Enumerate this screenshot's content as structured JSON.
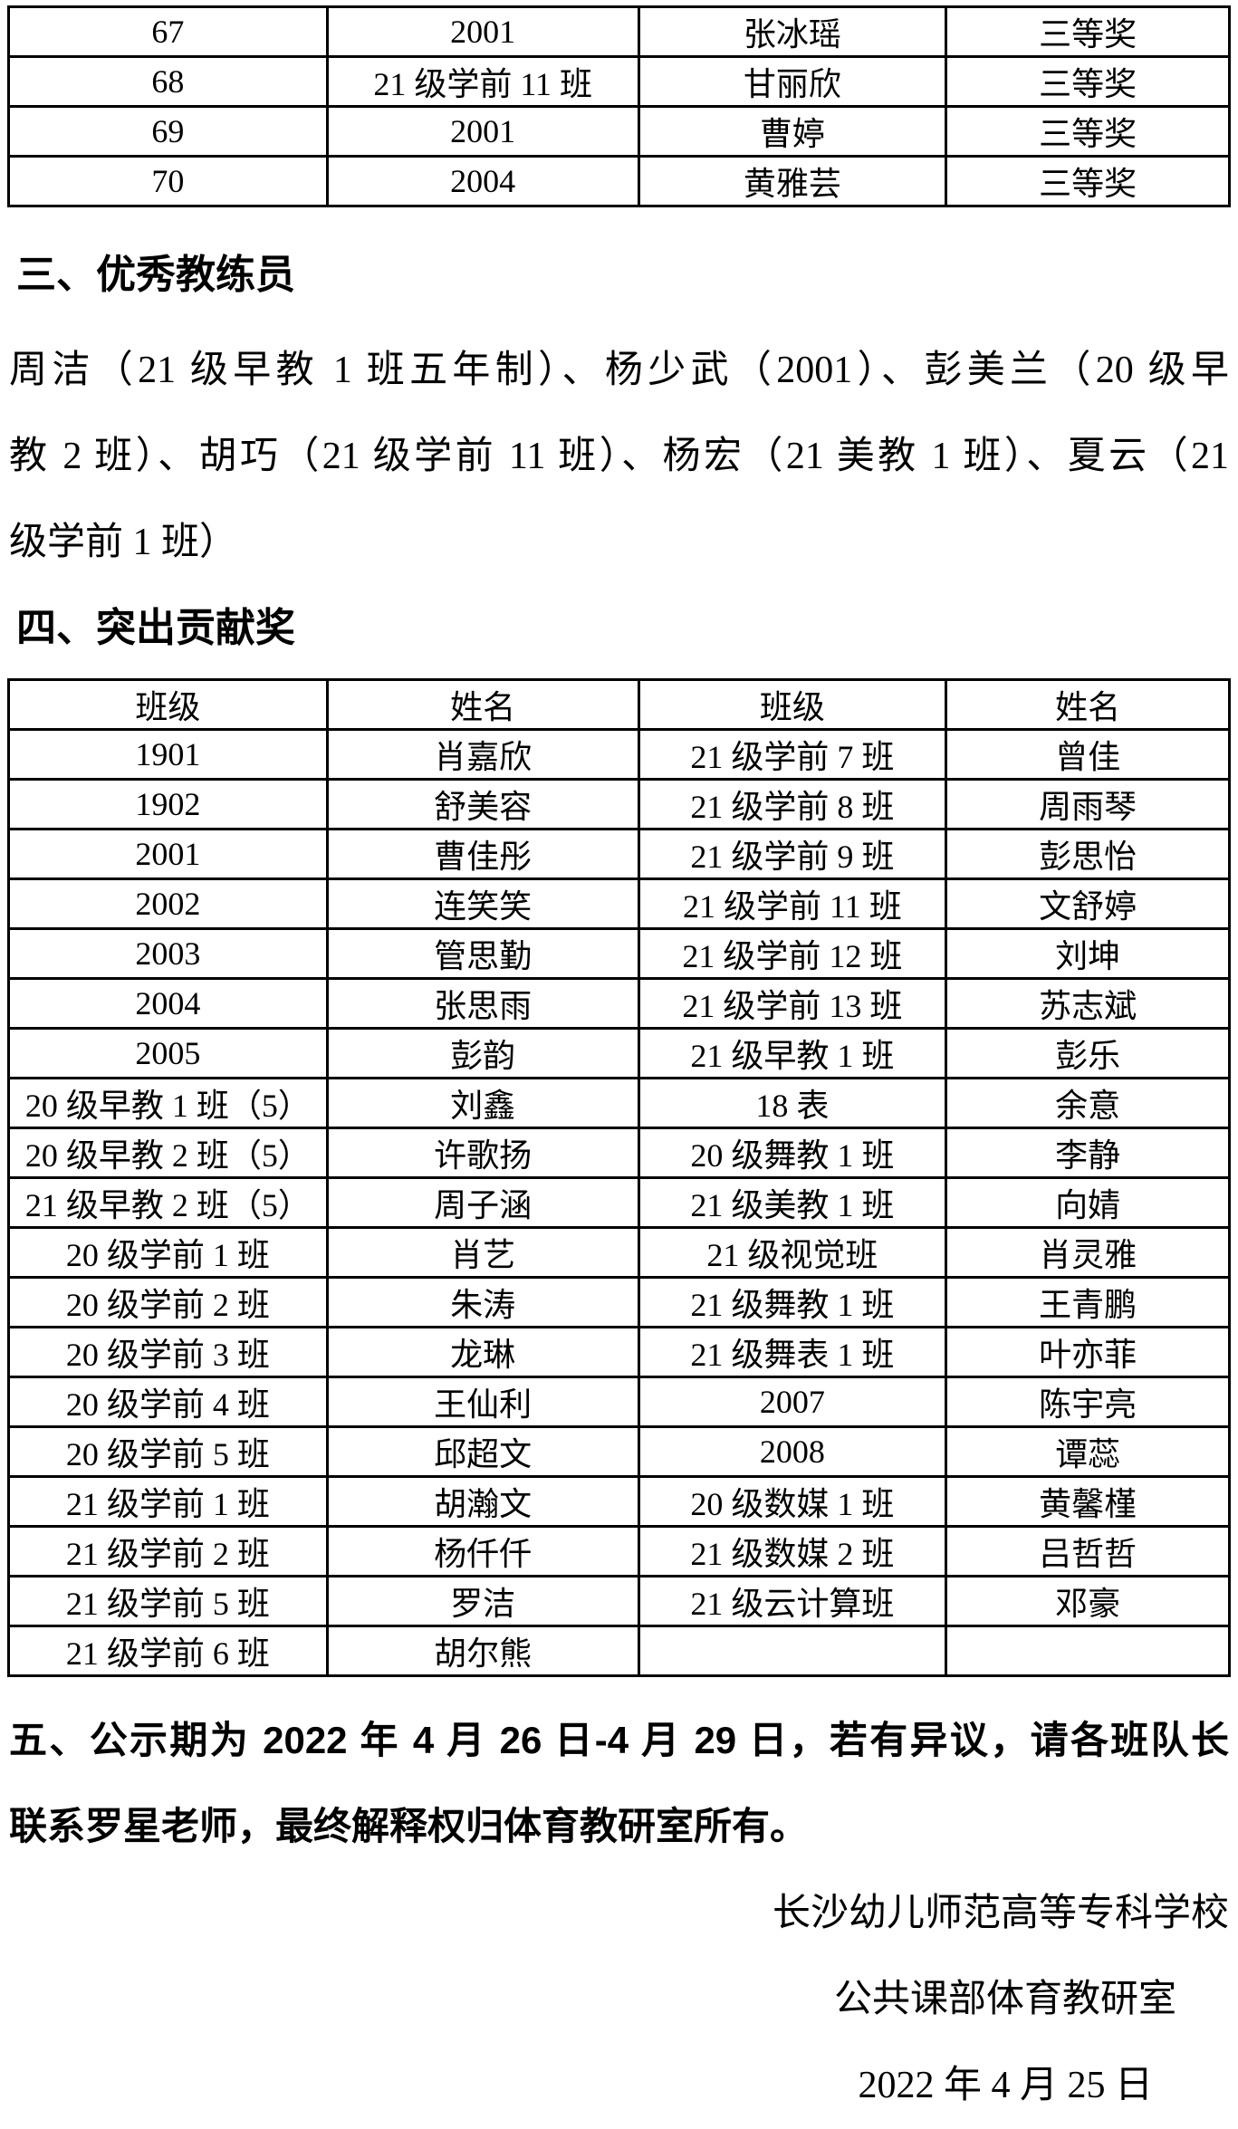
{
  "top_table": {
    "rows": [
      [
        "67",
        "2001",
        "张冰瑶",
        "三等奖"
      ],
      [
        "68",
        "21 级学前 11 班",
        "甘丽欣",
        "三等奖"
      ],
      [
        "69",
        "2001",
        "曹婷",
        "三等奖"
      ],
      [
        "70",
        "2004",
        "黄雅芸",
        "三等奖"
      ]
    ]
  },
  "section3": {
    "heading": "三、优秀教练员",
    "lines": [
      "周洁（21 级早教 1 班五年制）、杨少武（2001）、彭美兰（20 级早",
      "教 2 班）、胡巧（21 级学前 11 班）、杨宏（21 美教 1 班）、夏云（21",
      "级学前 1 班）"
    ]
  },
  "section4": {
    "heading": "四、突出贡献奖",
    "table": {
      "headers": [
        "班级",
        "姓名",
        "班级",
        "姓名"
      ],
      "rows": [
        [
          "1901",
          "肖嘉欣",
          "21 级学前 7 班",
          "曾佳"
        ],
        [
          "1902",
          "舒美容",
          "21 级学前 8 班",
          "周雨琴"
        ],
        [
          "2001",
          "曹佳彤",
          "21 级学前 9 班",
          "彭思怡"
        ],
        [
          "2002",
          "连笑笑",
          "21 级学前 11 班",
          "文舒婷"
        ],
        [
          "2003",
          "管思勤",
          "21 级学前 12 班",
          "刘坤"
        ],
        [
          "2004",
          "张思雨",
          "21 级学前 13 班",
          "苏志斌"
        ],
        [
          "2005",
          "彭韵",
          "21 级早教 1 班",
          "彭乐"
        ],
        [
          "20 级早教 1 班（5）",
          "刘鑫",
          "18 表",
          "余意"
        ],
        [
          "20 级早教 2 班（5）",
          "许歌扬",
          "20 级舞教 1 班",
          "李静"
        ],
        [
          "21 级早教 2 班（5）",
          "周子涵",
          "21 级美教 1 班",
          "向婧"
        ],
        [
          "20 级学前 1 班",
          "肖艺",
          "21 级视觉班",
          "肖灵雅"
        ],
        [
          "20 级学前 2 班",
          "朱涛",
          "21 级舞教 1 班",
          "王青鹏"
        ],
        [
          "20 级学前 3 班",
          "龙琳",
          "21 级舞表 1 班",
          "叶亦菲"
        ],
        [
          "20 级学前 4 班",
          "王仙利",
          "2007",
          "陈宇亮"
        ],
        [
          "20 级学前 5 班",
          "邱超文",
          "2008",
          "谭蕊"
        ],
        [
          "21 级学前 1 班",
          "胡瀚文",
          "20 级数媒 1 班",
          "黄馨槿"
        ],
        [
          "21 级学前 2 班",
          "杨仟仟",
          "21 级数媒 2 班",
          "吕哲哲"
        ],
        [
          "21 级学前 5 班",
          "罗洁",
          "21 级云计算班",
          "邓豪"
        ],
        [
          "21 级学前 6 班",
          "胡尔熊",
          "",
          ""
        ]
      ]
    }
  },
  "section5": {
    "lines": [
      "五、公示期为 2022 年 4 月 26 日-4 月 29 日，若有异议，请各班队长",
      "联系罗星老师，最终解释权归体育教研室所有。"
    ]
  },
  "signature": {
    "org1": "长沙幼儿师范高等专科学校",
    "org2": "公共课部体育教研室",
    "date": "2022 年 4 月 25 日"
  }
}
